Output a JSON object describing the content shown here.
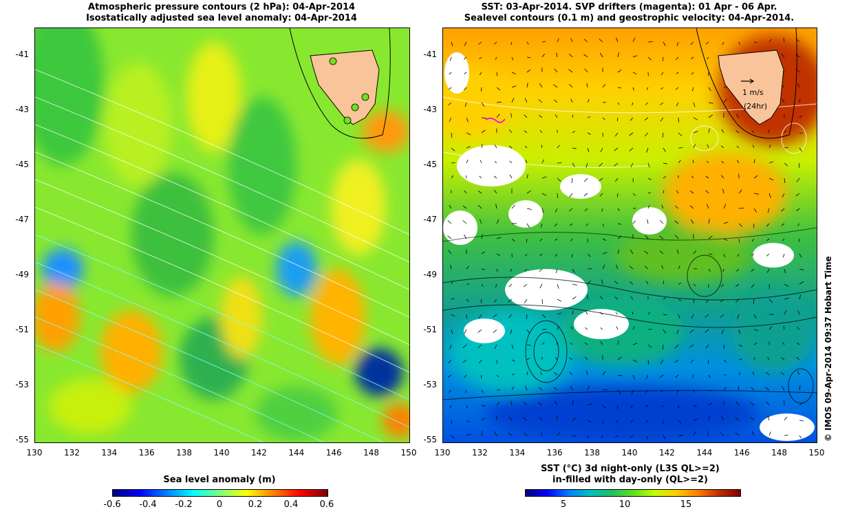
{
  "left": {
    "title1": "Atmospheric pressure contours (2 hPa): 04-Apr-2014",
    "title2": "Isostatically adjusted sea level anomaly: 04-Apr-2014",
    "colorbar_label": "Sea level anomaly (m)",
    "colorbar_ticks": [
      "-0.6",
      "-0.4",
      "-0.2",
      "0",
      "0.2",
      "0.4",
      "0.6"
    ]
  },
  "right": {
    "title1": "SST: 03-Apr-2014. SVP drifters (magenta): 01 Apr - 06 Apr.",
    "title2": "Sealevel contours (0.1 m) and geostrophic velocity: 04-Apr-2014.",
    "colorbar_label1": "SST (°C) 3d night-only (L3S QL>=2)",
    "colorbar_label2": "in-filled with day-only (QL>=2)",
    "colorbar_ticks": [
      "5",
      "10",
      "15"
    ],
    "scale_label": "1 m/s",
    "scale_sub": "(24hr)"
  },
  "axes": {
    "lat_ticks": [
      "-41",
      "-43",
      "-45",
      "-47",
      "-49",
      "-51",
      "-53",
      "-55"
    ],
    "lon_ticks": [
      "130",
      "132",
      "134",
      "136",
      "138",
      "140",
      "142",
      "144",
      "146",
      "148",
      "150"
    ]
  },
  "credit": "© IMOS 09-Apr-2014 09:37 Hobart Time",
  "colors": {
    "land": "#f9c49a",
    "sla_ramp": [
      "#00007f",
      "#0000ff",
      "#007fff",
      "#00ffff",
      "#7fff7f",
      "#ffff00",
      "#ff7f00",
      "#ff0000",
      "#7f0000"
    ],
    "sst_ramp": [
      "#00007f",
      "#0000ff",
      "#0080ff",
      "#00c0c0",
      "#20c060",
      "#60e020",
      "#c0ff00",
      "#ffd000",
      "#ff8000",
      "#c03000",
      "#800000"
    ],
    "drifter": "#ff00ff"
  }
}
